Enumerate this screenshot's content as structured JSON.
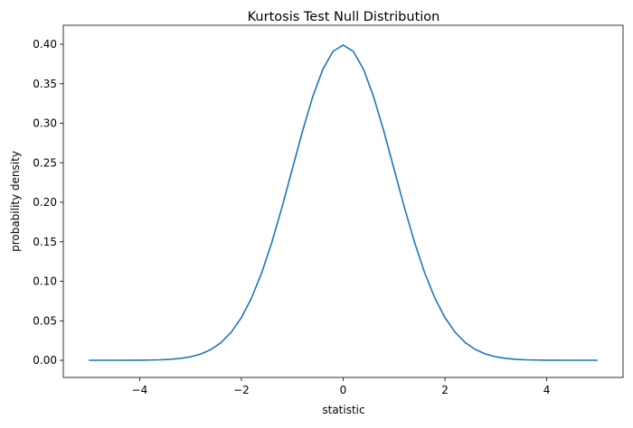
{
  "chart_data": {
    "type": "line",
    "title": "Kurtosis Test Null Distribution",
    "xlabel": "statistic",
    "ylabel": "probability density",
    "xlim": [
      -5.5,
      5.5
    ],
    "ylim": [
      -0.0217,
      0.424
    ],
    "xticks": [
      -4,
      -2,
      0,
      2,
      4
    ],
    "xtick_labels": [
      "−4",
      "−2",
      "0",
      "2",
      "4"
    ],
    "yticks": [
      0,
      0.05,
      0.1,
      0.15,
      0.2,
      0.25,
      0.3,
      0.35,
      0.4
    ],
    "ytick_labels": [
      "0.00",
      "0.05",
      "0.10",
      "0.15",
      "0.20",
      "0.25",
      "0.30",
      "0.35",
      "0.40"
    ],
    "grid": false,
    "series": [
      {
        "color": "#1f77b4",
        "x": [
          -5,
          -4.8,
          -4.6,
          -4.4,
          -4.2,
          -4,
          -3.8,
          -3.6,
          -3.4,
          -3.2,
          -3,
          -2.8,
          -2.6,
          -2.4,
          -2.2,
          -2,
          -1.8,
          -1.6,
          -1.4,
          -1.2,
          -1,
          -0.8,
          -0.6,
          -0.4,
          -0.2,
          0,
          0.2,
          0.4,
          0.6,
          0.8,
          1,
          1.2,
          1.4,
          1.6,
          1.8,
          2,
          2.2,
          2.4,
          2.6,
          2.8,
          3,
          3.2,
          3.4,
          3.6,
          3.8,
          4,
          4.2,
          4.4,
          4.6,
          4.8,
          5
        ],
        "y": [
          0,
          0,
          0,
          0,
          0.0001,
          0.0001,
          0.0003,
          0.0006,
          0.0012,
          0.0024,
          0.0044,
          0.0079,
          0.0136,
          0.0224,
          0.0355,
          0.054,
          0.079,
          0.1109,
          0.1497,
          0.1942,
          0.242,
          0.2897,
          0.3332,
          0.3683,
          0.391,
          0.3989,
          0.391,
          0.3683,
          0.3332,
          0.2897,
          0.242,
          0.1942,
          0.1497,
          0.1109,
          0.079,
          0.054,
          0.0355,
          0.0224,
          0.0136,
          0.0079,
          0.0044,
          0.0024,
          0.0012,
          0.0006,
          0.0003,
          0.0001,
          0.0001,
          0,
          0,
          0,
          0
        ]
      }
    ]
  }
}
